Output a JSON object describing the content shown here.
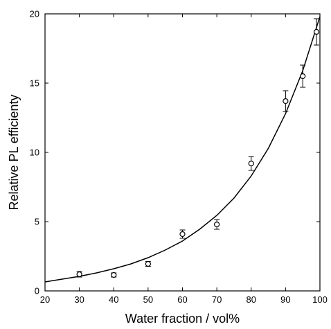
{
  "chart_data": {
    "type": "scatter",
    "title": "",
    "xlabel": "Water fraction / vol%",
    "ylabel": "Relative PL efficienty",
    "xlim": [
      20,
      100
    ],
    "ylim": [
      0,
      20
    ],
    "xticks": [
      20,
      30,
      40,
      50,
      60,
      70,
      80,
      90,
      100
    ],
    "yticks": [
      0,
      5,
      10,
      15,
      20
    ],
    "grid": false,
    "legend": "none",
    "points": [
      {
        "x": 30,
        "y": 1.2,
        "err": 0.2
      },
      {
        "x": 40,
        "y": 1.15,
        "err": 0.15
      },
      {
        "x": 50,
        "y": 1.95,
        "err": 0.18
      },
      {
        "x": 60,
        "y": 4.1,
        "err": 0.3
      },
      {
        "x": 70,
        "y": 4.8,
        "err": 0.35
      },
      {
        "x": 80,
        "y": 9.2,
        "err": 0.5
      },
      {
        "x": 90,
        "y": 13.7,
        "err": 0.75
      },
      {
        "x": 95,
        "y": 15.5,
        "err": 0.8
      },
      {
        "x": 99,
        "y": 18.7,
        "err": 0.95
      }
    ],
    "fit_curve": [
      {
        "x": 20,
        "y": 0.65
      },
      {
        "x": 25,
        "y": 0.85
      },
      {
        "x": 30,
        "y": 1.05
      },
      {
        "x": 35,
        "y": 1.3
      },
      {
        "x": 40,
        "y": 1.6
      },
      {
        "x": 45,
        "y": 1.95
      },
      {
        "x": 50,
        "y": 2.4
      },
      {
        "x": 55,
        "y": 2.95
      },
      {
        "x": 60,
        "y": 3.6
      },
      {
        "x": 65,
        "y": 4.45
      },
      {
        "x": 70,
        "y": 5.45
      },
      {
        "x": 75,
        "y": 6.7
      },
      {
        "x": 80,
        "y": 8.3
      },
      {
        "x": 85,
        "y": 10.3
      },
      {
        "x": 90,
        "y": 12.8
      },
      {
        "x": 95,
        "y": 15.9
      },
      {
        "x": 100,
        "y": 19.8
      }
    ]
  }
}
